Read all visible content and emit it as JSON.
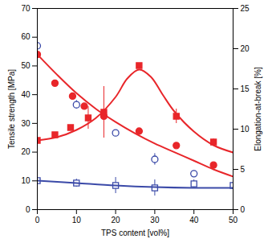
{
  "chart_data": {
    "type": "scatter",
    "x_label": "TPS content [vol%]",
    "y_label": "Tensile strength [MPa]",
    "y2_label": "Elongation-at-break [%]",
    "xlim": [
      0,
      50
    ],
    "xticks": [
      0,
      10,
      20,
      30,
      40,
      50
    ],
    "ylim": [
      0,
      70
    ],
    "yticks": [
      0,
      10,
      20,
      30,
      40,
      50,
      60,
      70
    ],
    "y2lim": [
      0,
      25
    ],
    "y2ticks": [
      0,
      5,
      10,
      15,
      20,
      25
    ],
    "grid": false,
    "series": [
      {
        "type": "scatter",
        "marker": "circle",
        "color": "#e8262a",
        "axis": "y",
        "x": [
          0,
          4.5,
          9,
          12,
          17,
          26,
          35.5,
          45
        ],
        "values": [
          54,
          44,
          39.5,
          36,
          32.5,
          27.3,
          22.3,
          15.5
        ]
      },
      {
        "type": "scatter",
        "marker": "circle-open",
        "color": "#3b4aa8",
        "axis": "y",
        "x": [
          0,
          10,
          20,
          30,
          40
        ],
        "values": [
          57,
          36.5,
          26.7,
          17.5,
          12.5
        ],
        "errors": [
          1.5,
          1.5,
          0.5,
          2,
          1
        ]
      },
      {
        "type": "scatter",
        "marker": "square",
        "color": "#e8262a",
        "axis": "y2",
        "x": [
          0,
          4.5,
          8.5,
          13,
          17,
          26,
          35.5,
          45
        ],
        "values": [
          8.6,
          9.3,
          10.2,
          11.4,
          12.1,
          17.9,
          11.6,
          8.4
        ],
        "errors": [
          0.3,
          0.3,
          0.3,
          1.4,
          3.2,
          0.3,
          0.9,
          0.4
        ]
      },
      {
        "type": "scatter",
        "marker": "square-open",
        "color": "#3b4aa8",
        "axis": "y2",
        "x": [
          0,
          10,
          20,
          30,
          40,
          50
        ],
        "values": [
          3.6,
          3.3,
          3.0,
          2.7,
          3.2,
          3.0
        ],
        "errors": [
          0.5,
          0.5,
          1,
          1,
          0.5,
          0.5
        ]
      },
      {
        "type": "line",
        "color": "#e8262a",
        "axis": "y",
        "x": [
          0,
          5,
          10,
          15,
          20,
          25,
          30,
          35,
          40,
          45,
          50
        ],
        "values": [
          54,
          47,
          40.5,
          35,
          30.5,
          26.5,
          23,
          20,
          17,
          14,
          11.5
        ]
      },
      {
        "type": "line",
        "color": "#e8262a",
        "axis": "y2",
        "x": [
          0,
          5,
          10,
          15,
          20,
          23,
          26,
          29,
          32,
          35,
          40,
          45,
          50
        ],
        "values": [
          8.6,
          9,
          9.9,
          11.4,
          14,
          16.3,
          17.4,
          16.5,
          14.3,
          12.2,
          9.7,
          8,
          7.1
        ]
      },
      {
        "type": "line",
        "color": "#3b4aa8",
        "axis": "y2",
        "x": [
          0,
          10,
          20,
          30,
          40,
          50
        ],
        "values": [
          3.6,
          3.3,
          3.0,
          2.8,
          2.7,
          2.7
        ]
      }
    ]
  }
}
